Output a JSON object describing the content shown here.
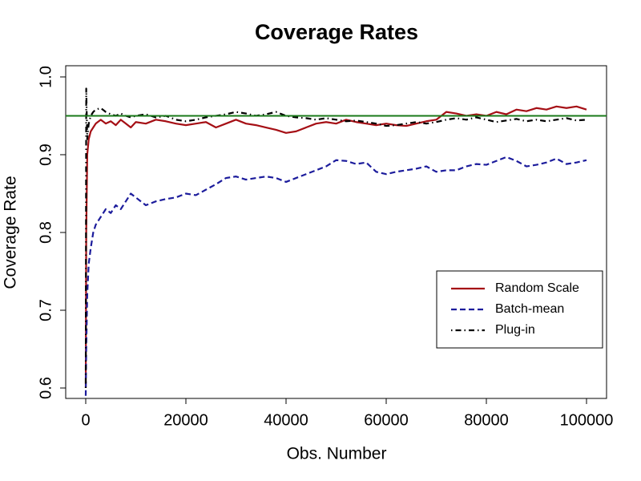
{
  "chart_data": {
    "type": "line",
    "title": "Coverage Rates",
    "x_label": "Obs. Number",
    "y_label": "Coverage Rate",
    "x": [
      0,
      100,
      300,
      600,
      1000,
      1500,
      2000,
      3000,
      4000,
      5000,
      6000,
      7000,
      8000,
      9000,
      10000,
      12000,
      14000,
      16000,
      18000,
      20000,
      22000,
      24000,
      26000,
      28000,
      30000,
      32000,
      34000,
      36000,
      38000,
      40000,
      42000,
      44000,
      46000,
      48000,
      50000,
      52000,
      54000,
      56000,
      58000,
      60000,
      62000,
      64000,
      66000,
      68000,
      70000,
      72000,
      74000,
      76000,
      78000,
      80000,
      82000,
      84000,
      86000,
      88000,
      90000,
      92000,
      94000,
      96000,
      98000,
      100000
    ],
    "series": [
      {
        "name": "Random Scale",
        "color": "#a50f15",
        "dash": "solid",
        "values": [
          0.6,
          0.8,
          0.9,
          0.92,
          0.93,
          0.935,
          0.94,
          0.945,
          0.94,
          0.943,
          0.938,
          0.945,
          0.94,
          0.935,
          0.942,
          0.94,
          0.945,
          0.943,
          0.94,
          0.938,
          0.94,
          0.942,
          0.935,
          0.94,
          0.945,
          0.94,
          0.938,
          0.935,
          0.932,
          0.928,
          0.93,
          0.935,
          0.94,
          0.942,
          0.94,
          0.945,
          0.942,
          0.94,
          0.938,
          0.94,
          0.938,
          0.937,
          0.94,
          0.943,
          0.945,
          0.955,
          0.953,
          0.95,
          0.952,
          0.95,
          0.955,
          0.952,
          0.958,
          0.956,
          0.96,
          0.958,
          0.962,
          0.96,
          0.962,
          0.958
        ]
      },
      {
        "name": "Batch-mean",
        "color": "#1c1c9c",
        "dash": "dashed",
        "values": [
          0.59,
          0.65,
          0.72,
          0.76,
          0.78,
          0.8,
          0.81,
          0.82,
          0.83,
          0.825,
          0.835,
          0.83,
          0.84,
          0.85,
          0.845,
          0.835,
          0.84,
          0.843,
          0.845,
          0.85,
          0.848,
          0.855,
          0.862,
          0.87,
          0.872,
          0.868,
          0.87,
          0.872,
          0.87,
          0.865,
          0.87,
          0.875,
          0.88,
          0.885,
          0.893,
          0.892,
          0.888,
          0.89,
          0.878,
          0.875,
          0.878,
          0.88,
          0.882,
          0.885,
          0.878,
          0.88,
          0.88,
          0.885,
          0.888,
          0.887,
          0.892,
          0.897,
          0.892,
          0.885,
          0.887,
          0.89,
          0.895,
          0.888,
          0.89,
          0.893
        ]
      },
      {
        "name": "Plug-in",
        "color": "#000000",
        "dash": "dotdash",
        "values": [
          0.6,
          0.985,
          0.92,
          0.94,
          0.95,
          0.955,
          0.958,
          0.96,
          0.955,
          0.952,
          0.95,
          0.953,
          0.95,
          0.948,
          0.95,
          0.952,
          0.948,
          0.95,
          0.945,
          0.943,
          0.945,
          0.948,
          0.95,
          0.952,
          0.955,
          0.953,
          0.95,
          0.952,
          0.955,
          0.95,
          0.948,
          0.947,
          0.945,
          0.947,
          0.945,
          0.943,
          0.944,
          0.942,
          0.94,
          0.937,
          0.938,
          0.94,
          0.942,
          0.94,
          0.942,
          0.945,
          0.947,
          0.945,
          0.948,
          0.945,
          0.942,
          0.944,
          0.946,
          0.943,
          0.945,
          0.943,
          0.945,
          0.947,
          0.944,
          0.945
        ]
      }
    ],
    "reference_line": {
      "value": 0.95,
      "color": "#1a7a1a"
    },
    "xlim": [
      -4000,
      104000
    ],
    "xticks": [
      0,
      20000,
      40000,
      60000,
      80000,
      100000
    ],
    "ylim": [
      0.5866,
      1.0144
    ],
    "yticks": [
      0.6,
      0.7,
      0.8,
      0.9,
      {
        "value": 1,
        "label": "1.0"
      }
    ],
    "legend": "right"
  }
}
